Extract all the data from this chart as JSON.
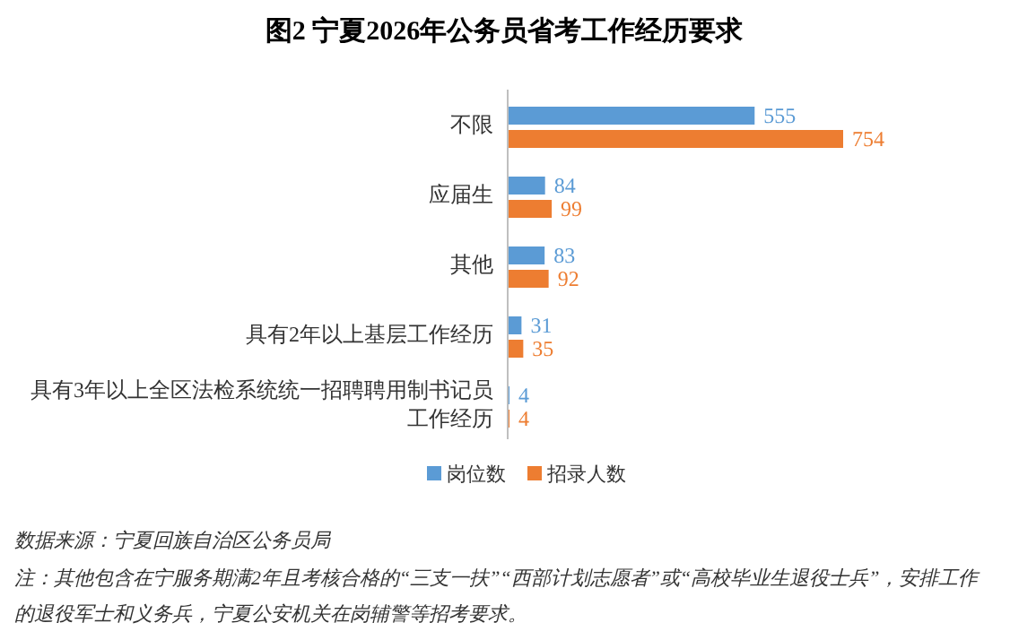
{
  "chart_data": {
    "type": "bar",
    "orientation": "horizontal",
    "title": "图2  宁夏2026年公务员省考工作经历要求",
    "categories": [
      "不限",
      "应届生",
      "其他",
      "具有2年以上基层工作经历",
      "具有3年以上全区法检系统统一招聘聘用制书记员工作经历"
    ],
    "series": [
      {
        "name": "岗位数",
        "color": "#5b9bd5",
        "values": [
          555,
          84,
          83,
          31,
          4
        ]
      },
      {
        "name": "招录人数",
        "color": "#ed7d31",
        "values": [
          754,
          99,
          92,
          35,
          4
        ]
      }
    ],
    "data_labels": true,
    "legend": "bottom",
    "annotations": [
      "数据来源：宁夏回族自治区公务员局",
      "注：其他包含在宁服务期满2年且考核合格的“三支一扶”“西部计划志愿者”或“高校毕业生退役士兵”，安排工作的退役军士和义务兵，宁夏公安机关在岗辅警等招考要求。"
    ]
  }
}
